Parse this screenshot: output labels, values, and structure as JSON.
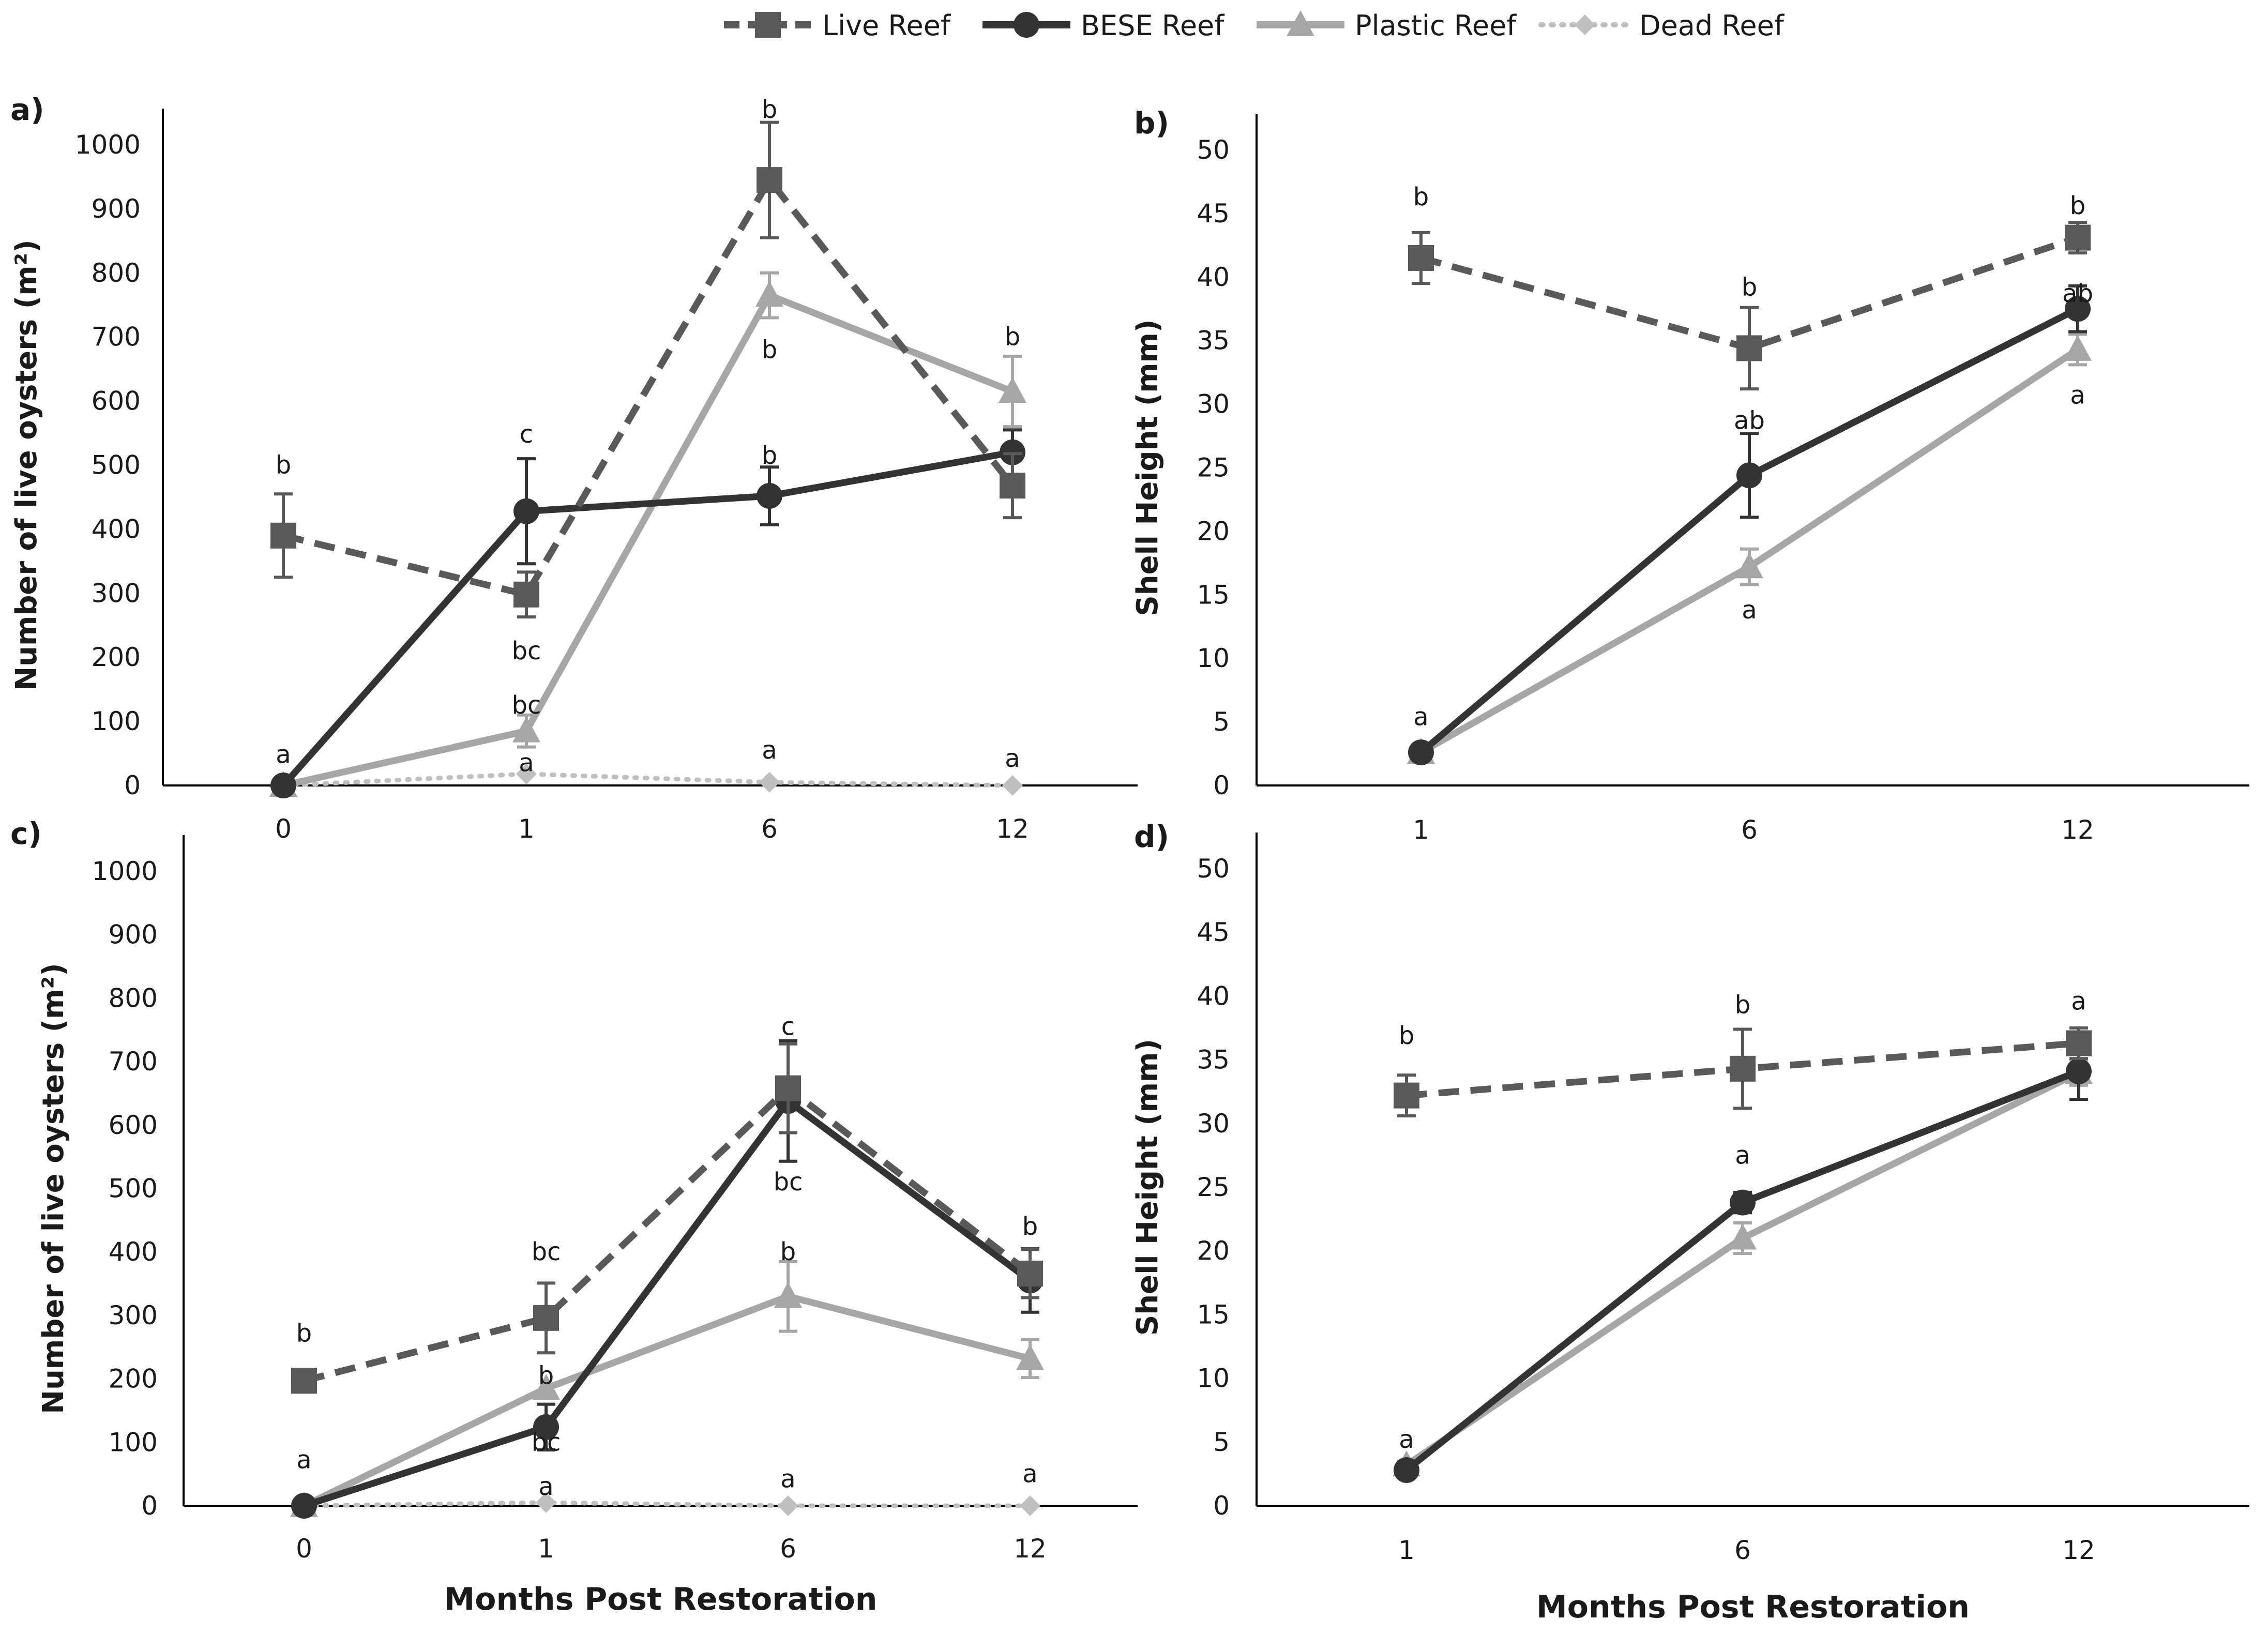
{
  "legend": [
    {
      "label": "Live Reef"
    },
    {
      "label": "BESE Reef"
    },
    {
      "label": "Plastic Reef"
    },
    {
      "label": "Dead Reef"
    }
  ],
  "series_styles": [
    {
      "name": "Live Reef",
      "color": "#595959",
      "dash": "dashed",
      "marker": "square"
    },
    {
      "name": "BESE Reef",
      "color": "#333333",
      "dash": "solid",
      "marker": "circle"
    },
    {
      "name": "Plastic Reef",
      "color": "#a6a6a6",
      "dash": "solid",
      "marker": "triangle"
    },
    {
      "name": "Dead Reef",
      "color": "#bfbfbf",
      "dash": "dotted",
      "marker": "diamond"
    }
  ],
  "chart_data": [
    {
      "type": "line",
      "panel": "a)",
      "xlabel": "",
      "ylabel": "Number of live oysters (m²)",
      "categories": [
        "0",
        "1",
        "6",
        "12"
      ],
      "ylim": [
        0,
        1000
      ],
      "yticks": [
        0,
        100,
        200,
        300,
        400,
        500,
        600,
        700,
        800,
        900,
        1000
      ],
      "series": [
        {
          "name": "Live Reef",
          "values": [
            390,
            298,
            945,
            468
          ],
          "errors": [
            65,
            35,
            90,
            50
          ]
        },
        {
          "name": "BESE Reef",
          "values": [
            0,
            428,
            452,
            520
          ],
          "errors": [
            0,
            82,
            45,
            35
          ]
        },
        {
          "name": "Plastic Reef",
          "values": [
            0,
            85,
            765,
            615
          ],
          "errors": [
            0,
            25,
            35,
            55
          ]
        },
        {
          "name": "Dead Reef",
          "values": [
            0,
            18,
            5,
            0
          ],
          "errors": [
            0,
            0,
            0,
            0
          ]
        }
      ],
      "annotations": [
        {
          "text": "b",
          "x": "0",
          "y": 500
        },
        {
          "text": "a",
          "x": "0",
          "y": 48
        },
        {
          "text": "c",
          "x": "1",
          "y": 548
        },
        {
          "text": "bc",
          "x": "1",
          "y": 210
        },
        {
          "text": "bc",
          "x": "1",
          "y": 125
        },
        {
          "text": "a",
          "x": "1",
          "y": 35
        },
        {
          "text": "b",
          "x": "6",
          "y": 1055
        },
        {
          "text": "b",
          "x": "6",
          "y": 680
        },
        {
          "text": "b",
          "x": "6",
          "y": 515
        },
        {
          "text": "a",
          "x": "6",
          "y": 55
        },
        {
          "text": "b",
          "x": "12",
          "y": 700
        },
        {
          "text": "a",
          "x": "12",
          "y": 42
        }
      ]
    },
    {
      "type": "line",
      "panel": "b)",
      "xlabel": "",
      "ylabel": "Shell Height (mm)",
      "categories": [
        "1",
        "6",
        "12"
      ],
      "ylim": [
        0,
        50
      ],
      "yticks": [
        0,
        5,
        10,
        15,
        20,
        25,
        30,
        35,
        40,
        45,
        50
      ],
      "series": [
        {
          "name": "Live Reef",
          "values": [
            41.5,
            34.4,
            43.1
          ],
          "errors": [
            2.0,
            3.2,
            1.2
          ]
        },
        {
          "name": "BESE Reef",
          "values": [
            2.6,
            24.4,
            37.5
          ],
          "errors": [
            0.4,
            3.3,
            1.8
          ]
        },
        {
          "name": "Plastic Reef",
          "values": [
            2.6,
            17.2,
            34.3
          ],
          "errors": [
            0.3,
            1.4,
            1.2
          ]
        }
      ],
      "annotations": [
        {
          "text": "b",
          "x": "1",
          "y": 46.3
        },
        {
          "text": "a",
          "x": "1",
          "y": 5.4
        },
        {
          "text": "b",
          "x": "6",
          "y": 39.2
        },
        {
          "text": "ab",
          "x": "6",
          "y": 28.7
        },
        {
          "text": "a",
          "x": "6",
          "y": 13.8
        },
        {
          "text": "b",
          "x": "12",
          "y": 45.6
        },
        {
          "text": "ab",
          "x": "12",
          "y": 38.7
        },
        {
          "text": "a",
          "x": "12",
          "y": 30.7
        }
      ]
    },
    {
      "type": "line",
      "panel": "c)",
      "xlabel": "Months Post Restoration",
      "ylabel": "Number of live oysters (m²)",
      "categories": [
        "0",
        "1",
        "6",
        "12"
      ],
      "ylim": [
        0,
        1000
      ],
      "yticks": [
        0,
        100,
        200,
        300,
        400,
        500,
        600,
        700,
        800,
        900,
        1000
      ],
      "series": [
        {
          "name": "Live Reef",
          "values": [
            197,
            296,
            658,
            366
          ],
          "errors": [
            0,
            55,
            70,
            38
          ]
        },
        {
          "name": "BESE Reef",
          "values": [
            0,
            124,
            638,
            355
          ],
          "errors": [
            0,
            36,
            95,
            50
          ]
        },
        {
          "name": "Plastic Reef",
          "values": [
            0,
            185,
            330,
            232
          ],
          "errors": [
            0,
            0,
            55,
            30
          ]
        },
        {
          "name": "Dead Reef",
          "values": [
            0,
            5,
            0,
            0
          ],
          "errors": [
            0,
            0,
            0,
            0
          ]
        }
      ],
      "annotations": [
        {
          "text": "b",
          "x": "0",
          "y": 272
        },
        {
          "text": "a",
          "x": "0",
          "y": 72
        },
        {
          "text": "bc",
          "x": "1",
          "y": 400
        },
        {
          "text": "b",
          "x": "1",
          "y": 205
        },
        {
          "text": "bc",
          "x": "1",
          "y": 100
        },
        {
          "text": "a",
          "x": "1",
          "y": 30
        },
        {
          "text": "c",
          "x": "6",
          "y": 755
        },
        {
          "text": "bc",
          "x": "6",
          "y": 510
        },
        {
          "text": "b",
          "x": "6",
          "y": 400
        },
        {
          "text": "a",
          "x": "6",
          "y": 42
        },
        {
          "text": "b",
          "x": "12",
          "y": 440
        },
        {
          "text": "a",
          "x": "12",
          "y": 50
        }
      ]
    },
    {
      "type": "line",
      "panel": "d)",
      "xlabel": "Months Post Restoration",
      "ylabel": "Shell Height (mm)",
      "categories": [
        "1",
        "6",
        "12"
      ],
      "ylim": [
        0,
        50
      ],
      "yticks": [
        0,
        5,
        10,
        15,
        20,
        25,
        30,
        35,
        40,
        45,
        50
      ],
      "series": [
        {
          "name": "Live Reef",
          "values": [
            32.2,
            34.3,
            36.3
          ],
          "errors": [
            1.6,
            3.1,
            1.2
          ]
        },
        {
          "name": "BESE Reef",
          "values": [
            2.8,
            23.8,
            34.1
          ],
          "errors": [
            0.4,
            0.8,
            2.2
          ]
        },
        {
          "name": "Plastic Reef",
          "values": [
            3.2,
            21.0,
            34.0
          ],
          "errors": [
            0.3,
            1.2,
            1.0
          ]
        }
      ],
      "annotations": [
        {
          "text": "b",
          "x": "1",
          "y": 36.9
        },
        {
          "text": "a",
          "x": "1",
          "y": 5.2
        },
        {
          "text": "b",
          "x": "6",
          "y": 39.3
        },
        {
          "text": "a",
          "x": "6",
          "y": 27.5
        },
        {
          "text": "a",
          "x": "12",
          "y": 39.6
        }
      ]
    }
  ]
}
